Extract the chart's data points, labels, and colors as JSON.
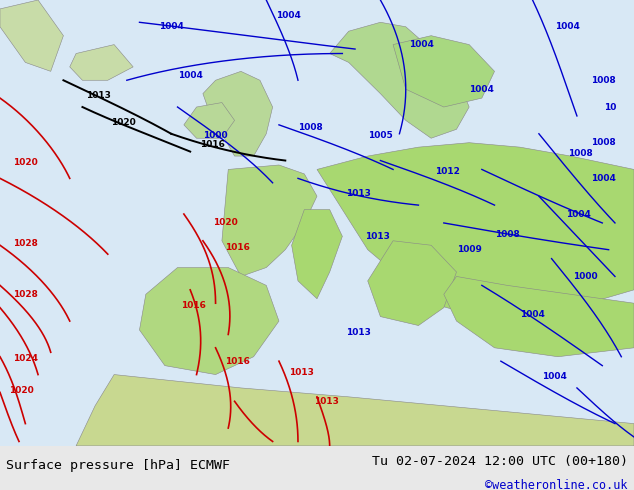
{
  "title_left": "Surface pressure [hPa] ECMWF",
  "title_right": "Tu 02-07-2024 12:00 UTC (00+180)",
  "watermark": "©weatheronline.co.uk",
  "bg_color": "#e8e8e8",
  "contour_blue_color": "#0000cc",
  "contour_red_color": "#cc0000",
  "contour_black_color": "#000000",
  "bottom_bar_height": 0.09,
  "figsize": [
    6.34,
    4.9
  ],
  "dpi": 100,
  "font_size_bottom": 9.5,
  "watermark_color": "#0000cc"
}
